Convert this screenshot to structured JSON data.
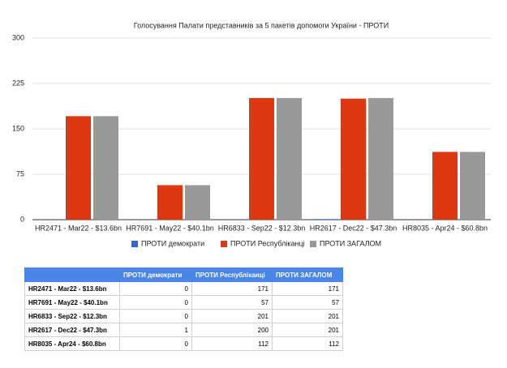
{
  "chart_data": {
    "type": "bar",
    "title": "Голосування Палати представників за 5 пакетів допомоги України - ПРОТИ",
    "categories": [
      "HR2471 - Mar22 - $13.6bn",
      "HR7691 - May22 - $40.1bn",
      "HR6833 - Sep22 - $12.3bn",
      "HR2617 - Dec22 - $47.3bn",
      "HR8035 - Apr24 - $60.8bn"
    ],
    "series": [
      {
        "name": "ПРОТИ демократи",
        "color": "#3366cc",
        "values": [
          0,
          0,
          0,
          1,
          0
        ]
      },
      {
        "name": "ПРОТИ Республіканці",
        "color": "#dc3912",
        "values": [
          171,
          57,
          201,
          200,
          112
        ]
      },
      {
        "name": "ПРОТИ ЗАГАЛОМ",
        "color": "#999999",
        "values": [
          171,
          57,
          201,
          201,
          112
        ]
      }
    ],
    "ylim": [
      0,
      300
    ],
    "yticks": [
      0,
      75,
      150,
      225,
      300
    ],
    "grid": true,
    "legend": "bottom"
  }
}
